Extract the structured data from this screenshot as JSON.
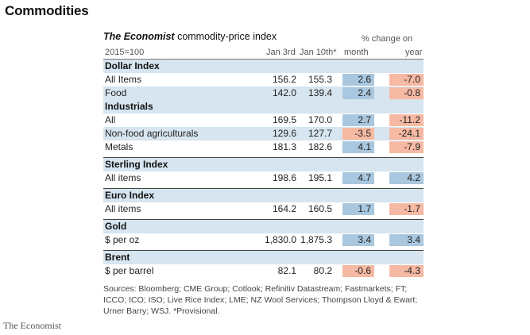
{
  "page": {
    "title": "Commodities",
    "brand": "The Economist"
  },
  "table": {
    "title_italic": "The Economist",
    "title_rest": " commodity-price index",
    "pct_change_label": "% change on",
    "headers": {
      "base": "2015=100",
      "col1": "Jan 3rd",
      "col2": "Jan 10th*",
      "month": "month",
      "year": "year"
    },
    "sections": [
      {
        "title": "Dollar Index",
        "rows": [
          {
            "label": "All Items",
            "v1": "156.2",
            "v2": "155.3",
            "month": "2.6",
            "year": "-7.0"
          },
          {
            "label": "Food",
            "v1": "142.0",
            "v2": "139.4",
            "month": "2.4",
            "year": "-0.8"
          }
        ]
      },
      {
        "title": "Industrials",
        "rows": [
          {
            "label": "All",
            "v1": "169.5",
            "v2": "170.0",
            "month": "2.7",
            "year": "-11.2"
          },
          {
            "label": "Non-food agriculturals",
            "v1": "129.6",
            "v2": "127.7",
            "month": "-3.5",
            "year": "-24.1"
          },
          {
            "label": "Metals",
            "v1": "181.3",
            "v2": "182.6",
            "month": "4.1",
            "year": "-7.9"
          }
        ]
      },
      {
        "title": "Sterling Index",
        "rows": [
          {
            "label": "All items",
            "v1": "198.6",
            "v2": "195.1",
            "month": "4.7",
            "year": "4.2"
          }
        ]
      },
      {
        "title": "Euro Index",
        "rows": [
          {
            "label": "All items",
            "v1": "164.2",
            "v2": "160.5",
            "month": "1.7",
            "year": "-1.7"
          }
        ]
      },
      {
        "title": "Gold",
        "rows": [
          {
            "label": "$ per oz",
            "v1": "1,830.0",
            "v2": "1,875.3",
            "month": "3.4",
            "year": "3.4"
          }
        ]
      },
      {
        "title": "Brent",
        "rows": [
          {
            "label": "$ per barrel",
            "v1": "82.1",
            "v2": "80.2",
            "month": "-0.6",
            "year": "-4.3"
          }
        ]
      }
    ],
    "sources": "Sources: Bloomberg; CME Group; Cotlook; Refinitiv Datastream; Fastmarkets; FT; ICCO; ICO; ISO; Live Rice Index; LME; NZ Wool Services; Thompson Lloyd & Ewart; Urner Barry; WSJ.  *Provisional."
  },
  "colors": {
    "section_bg": "#d6e5ef",
    "positive": "#a9c7de",
    "negative": "#f6b9a3"
  }
}
